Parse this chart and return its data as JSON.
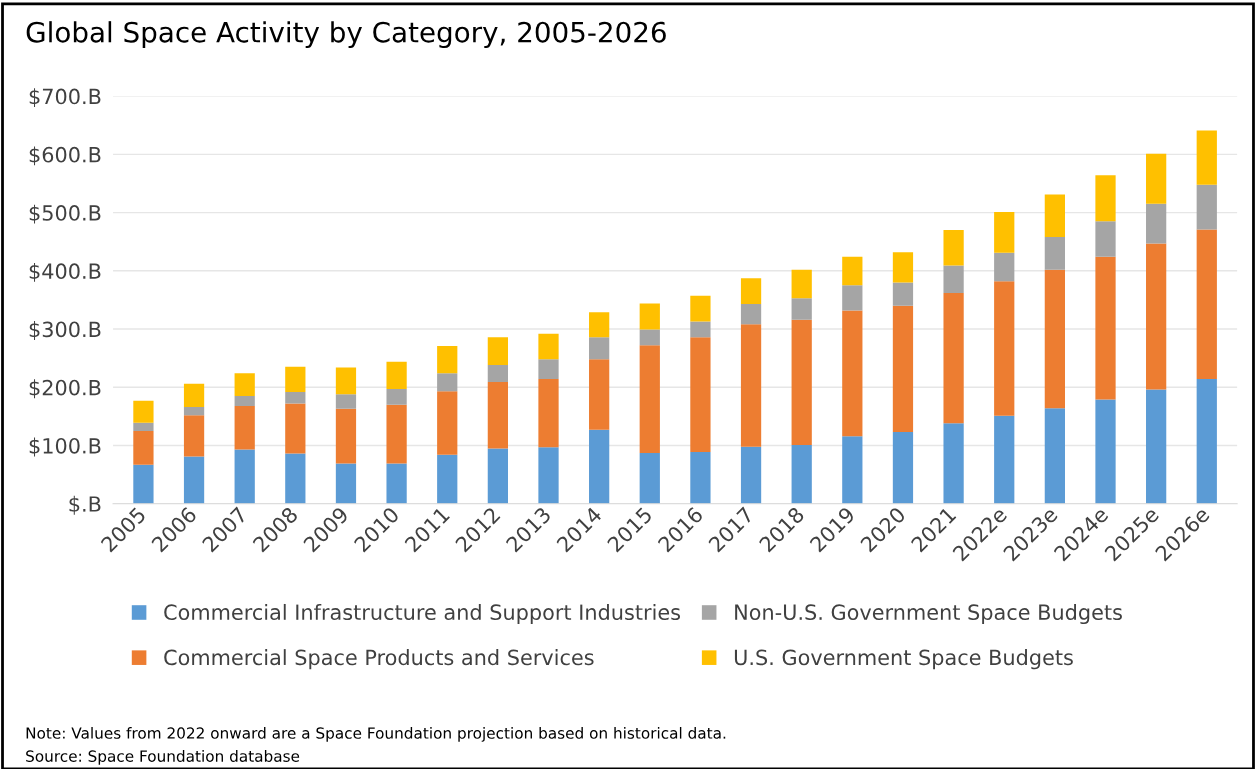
{
  "chart_data": {
    "type": "bar",
    "stacked": true,
    "title": "Global Space Activity by Category, 2005-2026",
    "categories": [
      "2005",
      "2006",
      "2007",
      "2008",
      "2009",
      "2010",
      "2011",
      "2012",
      "2013",
      "2014",
      "2015",
      "2016",
      "2017",
      "2018",
      "2019",
      "2020",
      "2021",
      "2022e",
      "2023e",
      "2024e",
      "2025e",
      "2026e"
    ],
    "series": [
      {
        "name": "Commercial Infrastructure and Support Industries",
        "color": "#5b9bd5",
        "values": [
          67,
          81,
          93,
          86,
          69,
          69,
          84,
          95,
          97,
          127,
          87,
          89,
          98,
          101,
          116,
          123,
          138,
          151,
          164,
          179,
          196,
          214
        ]
      },
      {
        "name": "Commercial Space Products and Services",
        "color": "#ed7d31",
        "values": [
          58,
          71,
          75,
          86,
          94,
          101,
          109,
          114,
          117,
          121,
          185,
          197,
          210,
          215,
          216,
          217,
          224,
          231,
          238,
          245,
          251,
          257
        ]
      },
      {
        "name": "Non-U.S. Government Space Budgets",
        "color": "#a5a5a5",
        "values": [
          14,
          14,
          17,
          20,
          25,
          27,
          31,
          29,
          34,
          38,
          27,
          27,
          35,
          37,
          43,
          40,
          47,
          49,
          56,
          61,
          68,
          77
        ]
      },
      {
        "name": "U.S. Government Space Budgets",
        "color": "#ffc000",
        "values": [
          38,
          40,
          39,
          43,
          46,
          47,
          47,
          48,
          44,
          43,
          45,
          44,
          44,
          49,
          49,
          52,
          61,
          70,
          73,
          79,
          86,
          93
        ]
      }
    ],
    "ylim": [
      0,
      700
    ],
    "yticks": [
      {
        "value": 0,
        "label": "$.B"
      },
      {
        "value": 100,
        "label": "$100.B"
      },
      {
        "value": 200,
        "label": "$200.B"
      },
      {
        "value": 300,
        "label": "$300.B"
      },
      {
        "value": 400,
        "label": "$400.B"
      },
      {
        "value": 500,
        "label": "$500.B"
      },
      {
        "value": 600,
        "label": "$600.B"
      },
      {
        "value": 700,
        "label": "$700.B"
      }
    ],
    "grid": "y",
    "legend": "bottom",
    "annotations": [
      "Note: Values from 2022 onward are a Space Foundation projection based on historical data.",
      "Source: Space Foundation database"
    ]
  }
}
